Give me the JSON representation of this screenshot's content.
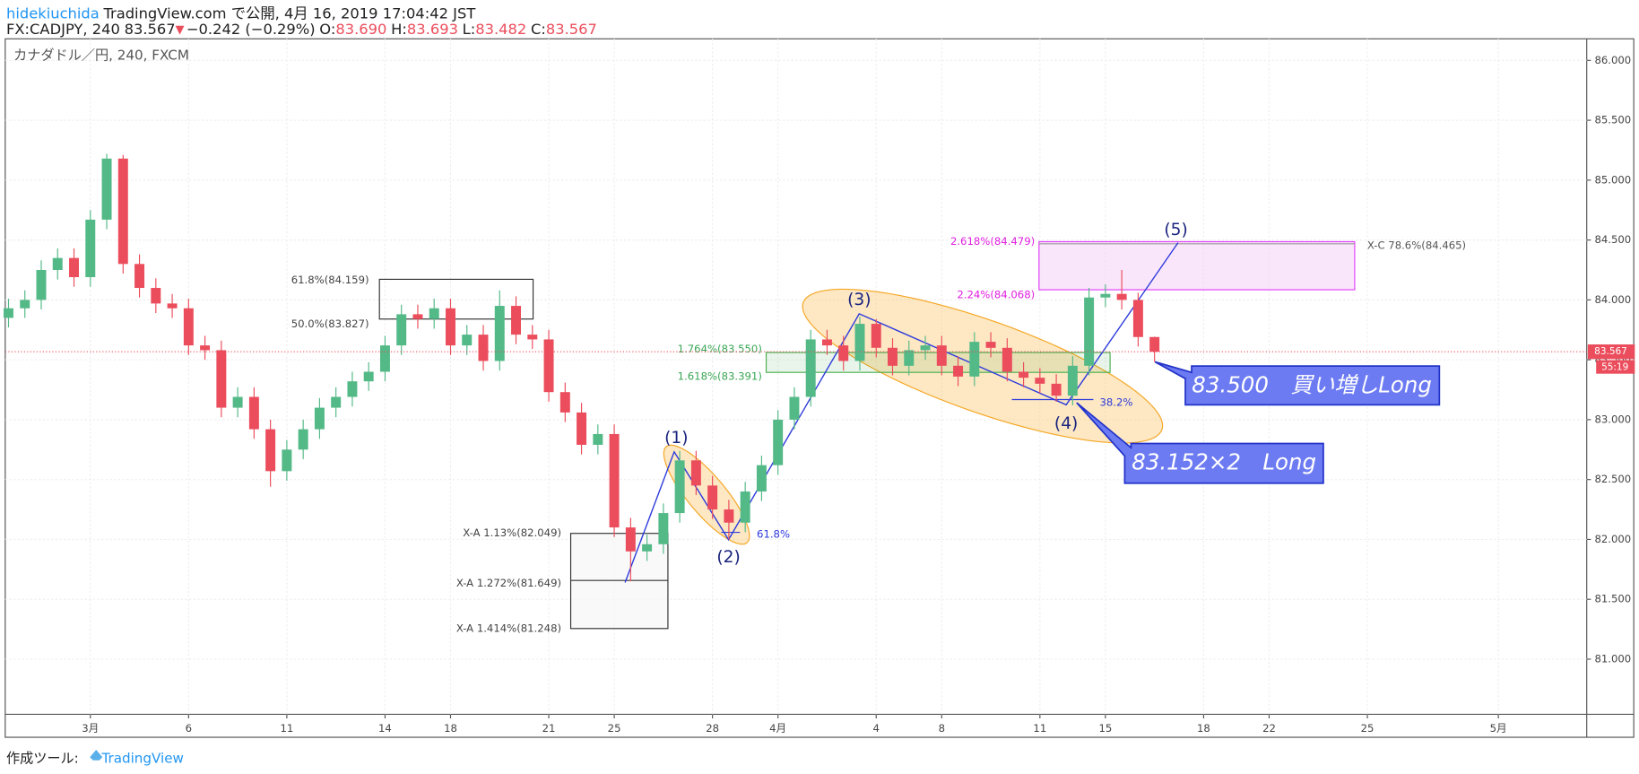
{
  "header": {
    "user": "hidekiuchida",
    "published": "TradingView.com で公開, 4月 16, 2019 17:04:42 JST",
    "symbol": "FX:CADJPY, 240",
    "last": "83.567",
    "arrow": "▼",
    "change": "−0.242 (−0.29%)",
    "ohlc": [
      {
        "label": "O:",
        "value": "83.690"
      },
      {
        "label": "H:",
        "value": "83.693"
      },
      {
        "label": "L:",
        "value": "83.482"
      },
      {
        "label": "C:",
        "value": "83.567"
      }
    ]
  },
  "footer": {
    "label": "作成ツール:",
    "brand": "TradingView"
  },
  "annotations": [
    "61.8%(84.159)",
    "50.0%(83.827)",
    "X-A   1.13%(82.049)",
    "X-A   1.272%(81.649)",
    "X-A   1.414%(81.248)",
    "(1)",
    "(2)",
    "61.8%",
    "(3)",
    "1.764%(83.550)",
    "1.618%(83.391)",
    "(4)",
    "38.2%",
    "2.618%(84.479)",
    "2.24%(84.068)",
    "(5)",
    "X-C   78.6%(84.465)",
    "83.500　買い増しLong",
    "83.152×2　Long"
  ],
  "chart_data": {
    "type": "candlestick",
    "title": "カナダドル／円, 240, FXCM",
    "up_color": "#53b987",
    "down_color": "#eb4d5c",
    "grid": true,
    "x": [
      -2.5,
      -2,
      -1.5,
      -1,
      -0.5,
      0,
      0.5,
      1,
      1.5,
      2,
      2.5,
      3,
      3.5,
      4,
      4.5,
      5,
      5.5,
      6,
      6.5,
      7,
      7.5,
      8,
      8.5,
      9,
      9.5,
      10,
      10.5,
      11,
      11.5,
      12,
      12.5,
      13,
      13.5,
      14,
      14.5,
      15,
      15.5,
      16,
      16.5,
      17,
      17.5,
      18,
      18.5,
      19,
      19.5,
      20,
      20.5,
      21,
      21.5,
      22,
      22.5,
      23,
      23.5,
      24,
      24.5,
      25,
      25.5,
      26,
      26.5,
      27,
      27.5,
      28,
      28.5,
      29,
      29.5,
      30,
      30.5,
      31,
      31.5,
      32,
      32.5
    ],
    "open": [
      83.85,
      83.93,
      84.0,
      84.25,
      84.35,
      84.19,
      84.67,
      85.18,
      84.3,
      84.1,
      83.97,
      83.93,
      83.62,
      83.58,
      83.1,
      83.19,
      82.92,
      82.57,
      82.75,
      82.92,
      83.1,
      83.19,
      83.32,
      83.4,
      83.62,
      83.88,
      83.84,
      83.93,
      83.62,
      83.71,
      83.49,
      83.95,
      83.71,
      83.67,
      83.23,
      83.06,
      82.79,
      82.88,
      82.1,
      81.9,
      81.96,
      82.22,
      82.66,
      82.45,
      82.25,
      82.14,
      82.4,
      82.62,
      83.0,
      83.19,
      83.67,
      83.62,
      83.49,
      83.8,
      83.6,
      83.45,
      83.58,
      83.62,
      83.45,
      83.36,
      83.65,
      83.6,
      83.4,
      83.35,
      83.3,
      83.2,
      83.45,
      84.02,
      84.05,
      84.0,
      83.69
    ],
    "high": [
      84.01,
      84.08,
      84.33,
      84.43,
      84.43,
      84.75,
      85.22,
      85.21,
      84.38,
      84.18,
      84.05,
      84.01,
      83.7,
      83.66,
      83.27,
      83.27,
      83.0,
      82.83,
      83.0,
      83.18,
      83.27,
      83.4,
      83.48,
      83.7,
      83.96,
      83.96,
      84.01,
      84.01,
      83.79,
      83.79,
      84.08,
      84.03,
      83.79,
      83.75,
      83.31,
      83.14,
      82.96,
      82.96,
      82.18,
      82.04,
      82.3,
      82.74,
      82.74,
      82.53,
      82.33,
      82.48,
      82.7,
      83.08,
      83.27,
      83.75,
      83.75,
      83.7,
      83.86,
      83.84,
      83.68,
      83.66,
      83.7,
      83.7,
      83.53,
      83.73,
      83.73,
      83.68,
      83.48,
      83.43,
      83.38,
      83.53,
      84.1,
      84.13,
      84.25,
      84.06,
      83.693
    ],
    "low": [
      83.77,
      83.85,
      83.92,
      84.17,
      84.11,
      84.11,
      84.59,
      84.22,
      84.02,
      83.89,
      83.85,
      83.54,
      83.5,
      83.02,
      83.02,
      82.84,
      82.44,
      82.49,
      82.67,
      82.84,
      83.02,
      83.11,
      83.24,
      83.32,
      83.54,
      83.76,
      83.76,
      83.54,
      83.54,
      83.41,
      83.41,
      83.63,
      83.59,
      83.15,
      82.98,
      82.71,
      82.71,
      82.02,
      81.65,
      81.82,
      81.88,
      82.14,
      82.37,
      82.17,
      82.0,
      82.06,
      82.32,
      82.54,
      82.92,
      83.11,
      83.54,
      83.41,
      83.41,
      83.52,
      83.37,
      83.37,
      83.5,
      83.37,
      83.28,
      83.28,
      83.52,
      83.32,
      83.27,
      83.22,
      83.15,
      83.12,
      83.37,
      83.94,
      83.92,
      83.61,
      83.482
    ],
    "close": [
      83.93,
      84.0,
      84.25,
      84.35,
      84.19,
      84.67,
      85.18,
      84.3,
      84.1,
      83.97,
      83.93,
      83.62,
      83.58,
      83.1,
      83.19,
      82.92,
      82.57,
      82.75,
      82.92,
      83.1,
      83.19,
      83.32,
      83.4,
      83.62,
      83.88,
      83.84,
      83.93,
      83.62,
      83.71,
      83.49,
      83.95,
      83.71,
      83.67,
      83.23,
      83.06,
      82.79,
      82.88,
      82.1,
      81.9,
      81.96,
      82.22,
      82.66,
      82.45,
      82.25,
      82.14,
      82.4,
      82.62,
      83.0,
      83.19,
      83.67,
      83.62,
      83.49,
      83.8,
      83.6,
      83.45,
      83.58,
      83.62,
      83.45,
      83.36,
      83.65,
      83.6,
      83.4,
      83.35,
      83.3,
      83.2,
      83.45,
      84.02,
      84.05,
      84.0,
      83.69,
      83.567
    ],
    "last_label": "83.567",
    "countdown": "55:19",
    "xlim": [
      -2.6,
      45.7
    ],
    "xticks": [
      {
        "value": 0,
        "label": "3月"
      },
      {
        "value": 3,
        "label": "6"
      },
      {
        "value": 6,
        "label": "11"
      },
      {
        "value": 9,
        "label": "14"
      },
      {
        "value": 11,
        "label": "18"
      },
      {
        "value": 14,
        "label": "21"
      },
      {
        "value": 16,
        "label": "25"
      },
      {
        "value": 19,
        "label": "28"
      },
      {
        "value": 21,
        "label": "4月"
      },
      {
        "value": 24,
        "label": "4"
      },
      {
        "value": 26,
        "label": "8"
      },
      {
        "value": 29,
        "label": "11"
      },
      {
        "value": 31,
        "label": "15"
      },
      {
        "value": 34,
        "label": "18"
      },
      {
        "value": 36,
        "label": "22"
      },
      {
        "value": 39,
        "label": "25"
      },
      {
        "value": 43,
        "label": "5月"
      }
    ],
    "ylim": [
      80.54,
      86.18
    ],
    "yticks": [
      {
        "value": 81,
        "label": "81.000"
      },
      {
        "value": 81.5,
        "label": "81.500"
      },
      {
        "value": 82,
        "label": "82.000"
      },
      {
        "value": 82.5,
        "label": "82.500"
      },
      {
        "value": 83,
        "label": "83.000"
      },
      {
        "value": 83.5,
        "label": "83.500"
      },
      {
        "value": 84,
        "label": "84.000"
      },
      {
        "value": 84.5,
        "label": "84.500"
      },
      {
        "value": 85,
        "label": "85.000"
      },
      {
        "value": 85.5,
        "label": "85.500"
      },
      {
        "value": 86,
        "label": "86.000"
      }
    ]
  }
}
